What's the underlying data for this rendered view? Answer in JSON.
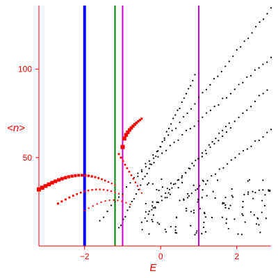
{
  "chart_data": {
    "type": "scatter",
    "title": "",
    "xlabel": "E",
    "ylabel": "<n>",
    "xlim": [
      -3.2,
      2.9
    ],
    "ylim": [
      0,
      136
    ],
    "x_ticks": [
      -2,
      0,
      2
    ],
    "y_ticks": [
      50,
      100
    ],
    "grid": false,
    "colors": {
      "axes": "#ff0000",
      "black_points": "#000000",
      "red_points": "#ff0000",
      "line_blue": "#0000ff",
      "line_green": "#008000",
      "line_magenta": "#cc00cc"
    },
    "vertical_lines": [
      {
        "x": -2.0,
        "color": "#0000ff"
      },
      {
        "x": -1.2,
        "color": "#008000"
      },
      {
        "x": -1.0,
        "color": "#cc00cc"
      },
      {
        "x": 1.0,
        "color": "#cc00cc"
      }
    ],
    "black_series": [
      {
        "x_range": [
          -1.6,
          2.9
        ],
        "y_range": [
          14,
          134
        ],
        "n": 46
      },
      {
        "x_range": [
          -1.1,
          0.9
        ],
        "y_range": [
          10,
          96
        ],
        "n": 36
      },
      {
        "x_range": [
          -0.6,
          2.9
        ],
        "y_range": [
          40,
          107
        ],
        "n": 34
      },
      {
        "x_range": [
          -0.5,
          1.8
        ],
        "y_range": [
          13,
          70
        ],
        "n": 27
      },
      {
        "x_range": [
          -0.3,
          2.8
        ],
        "y_range": [
          20,
          89
        ],
        "n": 30
      },
      {
        "x_range": [
          0.5,
          2.9
        ],
        "y_range": [
          25,
          66
        ],
        "n": 24
      },
      {
        "x_range": [
          -0.5,
          2.9
        ],
        "y_range": [
          6,
          38
        ],
        "n": 120
      }
    ],
    "red_series": [
      {
        "x_range": [
          -3.2,
          -1.2
        ],
        "y_range": [
          32,
          40
        ],
        "n": 24,
        "size_range": [
          6,
          2
        ]
      },
      {
        "x_range": [
          -2.7,
          -1.0
        ],
        "y_range": [
          24,
          32
        ],
        "n": 18,
        "size_range": [
          3,
          2
        ]
      },
      {
        "x_range": [
          -2.0,
          -0.8
        ],
        "y_range": [
          20,
          26
        ],
        "n": 12,
        "size_range": [
          2,
          2
        ]
      },
      {
        "x_range": [
          -1.0,
          -0.5
        ],
        "y_range": [
          56,
          72
        ],
        "n": 12,
        "size_range": [
          6,
          3
        ]
      },
      {
        "x_range": [
          -1.1,
          -0.5
        ],
        "y_range": [
          30,
          52
        ],
        "n": 12,
        "size_range": [
          3,
          2
        ]
      }
    ]
  }
}
